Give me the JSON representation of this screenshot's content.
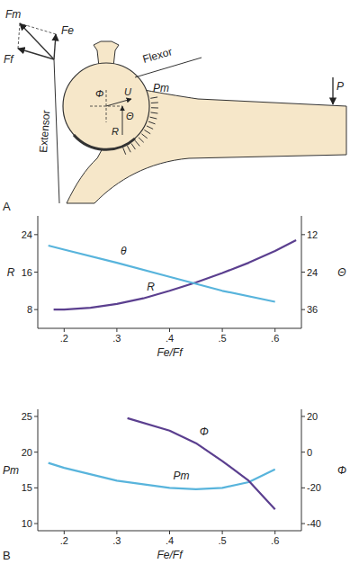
{
  "panels": [
    "A",
    "B"
  ],
  "diagram": {
    "labels": [
      "Fm",
      "Fe",
      "Ff",
      "Flexor",
      "Extensor",
      "Φ",
      "U",
      "Θ",
      "R",
      "Pm",
      "P"
    ]
  },
  "chart_data": [
    {
      "type": "line",
      "x_label": "Fe/Ff",
      "y_label": "R",
      "y2_label": "Θ",
      "xlim": [
        0.15,
        0.65
      ],
      "xticks": [
        {
          "value": 0.2,
          "label": ".2"
        },
        {
          "value": 0.3,
          "label": ".3"
        },
        {
          "value": 0.4,
          "label": ".4"
        },
        {
          "value": 0.5,
          "label": ".5"
        },
        {
          "value": 0.6,
          "label": ".6"
        }
      ],
      "ylim": [
        4,
        28
      ],
      "yticks": [
        8,
        16,
        24
      ],
      "y2lim": [
        42,
        6
      ],
      "y2ticks": [
        12,
        24,
        36
      ],
      "series": [
        {
          "name": "R",
          "color": "#5b3f8f",
          "x": [
            0.18,
            0.2,
            0.25,
            0.3,
            0.35,
            0.4,
            0.45,
            0.5,
            0.55,
            0.6,
            0.64
          ],
          "values": [
            8,
            8,
            8.4,
            9.2,
            10.4,
            12,
            13.8,
            15.8,
            18,
            20.5,
            22.8
          ]
        },
        {
          "name": "θ",
          "color": "#58b4dc",
          "axis": "y2",
          "x": [
            0.17,
            0.2,
            0.3,
            0.4,
            0.5,
            0.6
          ],
          "values": [
            15.5,
            16.8,
            21,
            25.5,
            30,
            33.5
          ]
        }
      ]
    },
    {
      "type": "line",
      "x_label": "Fe/Ff",
      "y_label": "Pm",
      "y2_label": "Φ",
      "xlim": [
        0.15,
        0.65
      ],
      "xticks": [
        {
          "value": 0.2,
          "label": ".2"
        },
        {
          "value": 0.3,
          "label": ".3"
        },
        {
          "value": 0.4,
          "label": ".4"
        },
        {
          "value": 0.5,
          "label": ".5"
        },
        {
          "value": 0.6,
          "label": ".6"
        }
      ],
      "ylim": [
        9,
        26
      ],
      "yticks": [
        10,
        15,
        20,
        25
      ],
      "y2lim": [
        -44,
        24
      ],
      "y2ticks": [
        -40,
        -20,
        0,
        20
      ],
      "series": [
        {
          "name": "Pm",
          "color": "#58b4dc",
          "x": [
            0.17,
            0.2,
            0.3,
            0.4,
            0.45,
            0.5,
            0.55,
            0.6
          ],
          "values": [
            18.5,
            17.8,
            16,
            15,
            14.8,
            15,
            15.8,
            17.6
          ]
        },
        {
          "name": "Φ",
          "color": "#5b3f8f",
          "axis": "y2",
          "x": [
            0.32,
            0.4,
            0.45,
            0.5,
            0.55,
            0.6
          ],
          "values": [
            19,
            12,
            5,
            -5,
            -16,
            -32
          ]
        }
      ]
    }
  ]
}
